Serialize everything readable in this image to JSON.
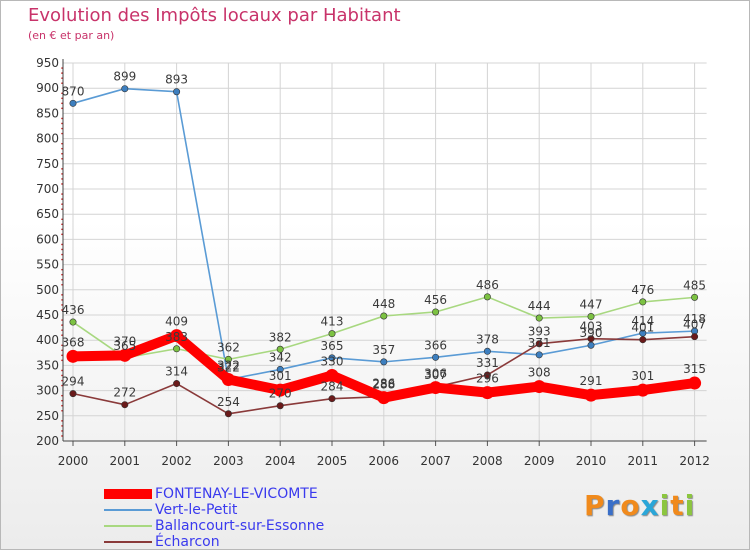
{
  "title": "Evolution des Impôts locaux par Habitant",
  "subtitle": "(en € et par an)",
  "brand": {
    "letters": [
      "P",
      "r",
      "o",
      "x",
      "i",
      "t",
      "i"
    ],
    "colors": [
      "#f08a1c",
      "#3a6fc8",
      "#f08a1c",
      "#2aa6d8",
      "#8cc63f",
      "#f08a1c",
      "#8cc63f"
    ]
  },
  "chart_data": {
    "type": "line",
    "title": "Evolution des Impôts locaux par Habitant",
    "subtitle": "(en € et par an)",
    "ylim": [
      200,
      950
    ],
    "yticks": [
      "200",
      "250",
      "300",
      "350",
      "400",
      "450",
      "500",
      "550",
      "600",
      "650",
      "700",
      "750",
      "800",
      "850",
      "900",
      "950"
    ],
    "categories": [
      "2000",
      "2001",
      "2002",
      "2003",
      "2004",
      "2005",
      "2006",
      "2007",
      "2008",
      "2009",
      "2010",
      "2011",
      "2012"
    ],
    "legend_position": "bottom-left",
    "series": [
      {
        "name": "Vert-le-Petit",
        "color": "#5a9bd5",
        "marker": "#3d7fbf",
        "style": "thin",
        "values": [
          870,
          899,
          893,
          322,
          342,
          365,
          357,
          366,
          378,
          371,
          390,
          414,
          418
        ],
        "labels": [
          "870",
          "899",
          "893",
          "322",
          "342",
          "365",
          "357",
          "366",
          "378",
          "371",
          "390",
          "414",
          "418"
        ]
      },
      {
        "name": "Ballancourt-sur-Essonne",
        "color": "#a8d880",
        "marker": "#7cc242",
        "style": "thin",
        "values": [
          436,
          365,
          383,
          362,
          382,
          413,
          448,
          456,
          486,
          444,
          447,
          476,
          485
        ],
        "labels": [
          "436",
          "365",
          "383",
          "362",
          "382",
          "413",
          "448",
          "456",
          "486",
          "444",
          "447",
          "476",
          "485"
        ]
      },
      {
        "name": "Écharcon",
        "color": "#8a3a3a",
        "marker": "#6a1a1a",
        "style": "thin",
        "values": [
          294,
          272,
          314,
          254,
          270,
          284,
          288,
          307,
          331,
          393,
          403,
          401,
          407
        ],
        "labels": [
          "294",
          "272",
          "314",
          "254",
          "270",
          "284",
          "288",
          "307",
          "331",
          "393",
          "403",
          "401",
          "407"
        ]
      },
      {
        "name": "FONTENAY-LE-VICOMTE",
        "color": "#ff0000",
        "marker": "#ff0000",
        "style": "thick",
        "values": [
          368,
          370,
          409,
          322,
          301,
          330,
          286,
          306,
          296,
          308,
          291,
          301,
          315
        ],
        "labels": [
          "368",
          "370",
          "409",
          "322",
          "301",
          "330",
          "286",
          "306",
          "296",
          "308",
          "291",
          "301",
          "315"
        ]
      }
    ],
    "legend": [
      "FONTENAY-LE-VICOMTE",
      "Vert-le-Petit",
      "Ballancourt-sur-Essonne",
      "Écharcon"
    ]
  }
}
